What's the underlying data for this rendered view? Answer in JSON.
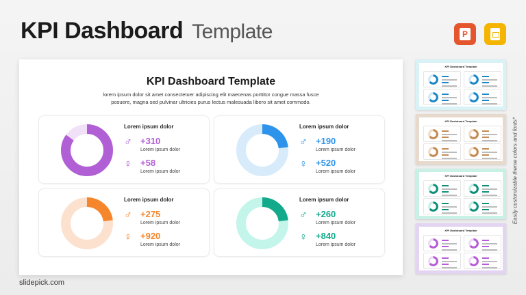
{
  "header": {
    "title_bold": "KPI Dashboard",
    "title_light": "Template"
  },
  "apps": {
    "powerpoint_letter": "P",
    "icons": [
      "powerpoint-icon",
      "google-slides-icon"
    ],
    "colors": {
      "powerpoint": "#e4572e",
      "google_slides": "#f5b400"
    }
  },
  "slide": {
    "title": "KPI Dashboard Template",
    "subtitle_line1": "lorem ipsum dolor sit amet consectetuer adipiscing elit maecenas porttitor congue massa fusce",
    "subtitle_line2": "posuere, magna sed pulvinar ultricies purus lectus malesuada libero sit amet commodo.",
    "cards": [
      {
        "heading": "Lorem ipsum dolor",
        "color": "#b05fd4",
        "light": "#f0e0f8",
        "ring_fraction": 0.85,
        "male_value": "+310",
        "male_label": "Lorem ipsum dolor",
        "female_value": "+58",
        "female_label": "Lorem ipsum dolor"
      },
      {
        "heading": "Lorem ipsum dolor",
        "color": "#2e93ea",
        "light": "#d7ebfb",
        "ring_fraction": 0.23,
        "male_value": "+190",
        "male_label": "Lorem ipsum dolor",
        "female_value": "+520",
        "female_label": "Lorem ipsum dolor"
      },
      {
        "heading": "Lorem ipsum dolor",
        "color": "#f6862c",
        "light": "#fde1cf",
        "ring_fraction": 0.23,
        "male_value": "+275",
        "male_label": "Lorem ipsum dolor",
        "female_value": "+920",
        "female_label": "Lorem ipsum dolor"
      },
      {
        "heading": "Lorem ipsum dolor",
        "color": "#13a98b",
        "light": "#c3f5ea",
        "ring_fraction": 0.23,
        "male_value": "+260",
        "male_label": "Lorem ipsum dolor",
        "female_value": "+840",
        "female_label": "Lorem ipsum dolor"
      }
    ],
    "male_symbol": "♂",
    "female_symbol": "♀"
  },
  "brand": "slidepick.com",
  "side_note": "Easily customizable theme colors and fonts*",
  "thumbnails": [
    {
      "title": "KPI Dashboard Template",
      "bg": "#d8f2f6",
      "ring": "#1b86c7",
      "ring_light": "#cfe8f6"
    },
    {
      "title": "KPI Dashboard Template",
      "bg": "#e7d9cb",
      "ring": "#c28a52",
      "ring_light": "#efdcc8"
    },
    {
      "title": "KPI Dashboard Template",
      "bg": "#c9f0e4",
      "ring": "#0e8f7a",
      "ring_light": "#c6eee4"
    },
    {
      "title": "KPI Dashboard Template",
      "bg": "#e3d4f2",
      "ring": "#b75bd6",
      "ring_light": "#ecdaf6"
    }
  ]
}
